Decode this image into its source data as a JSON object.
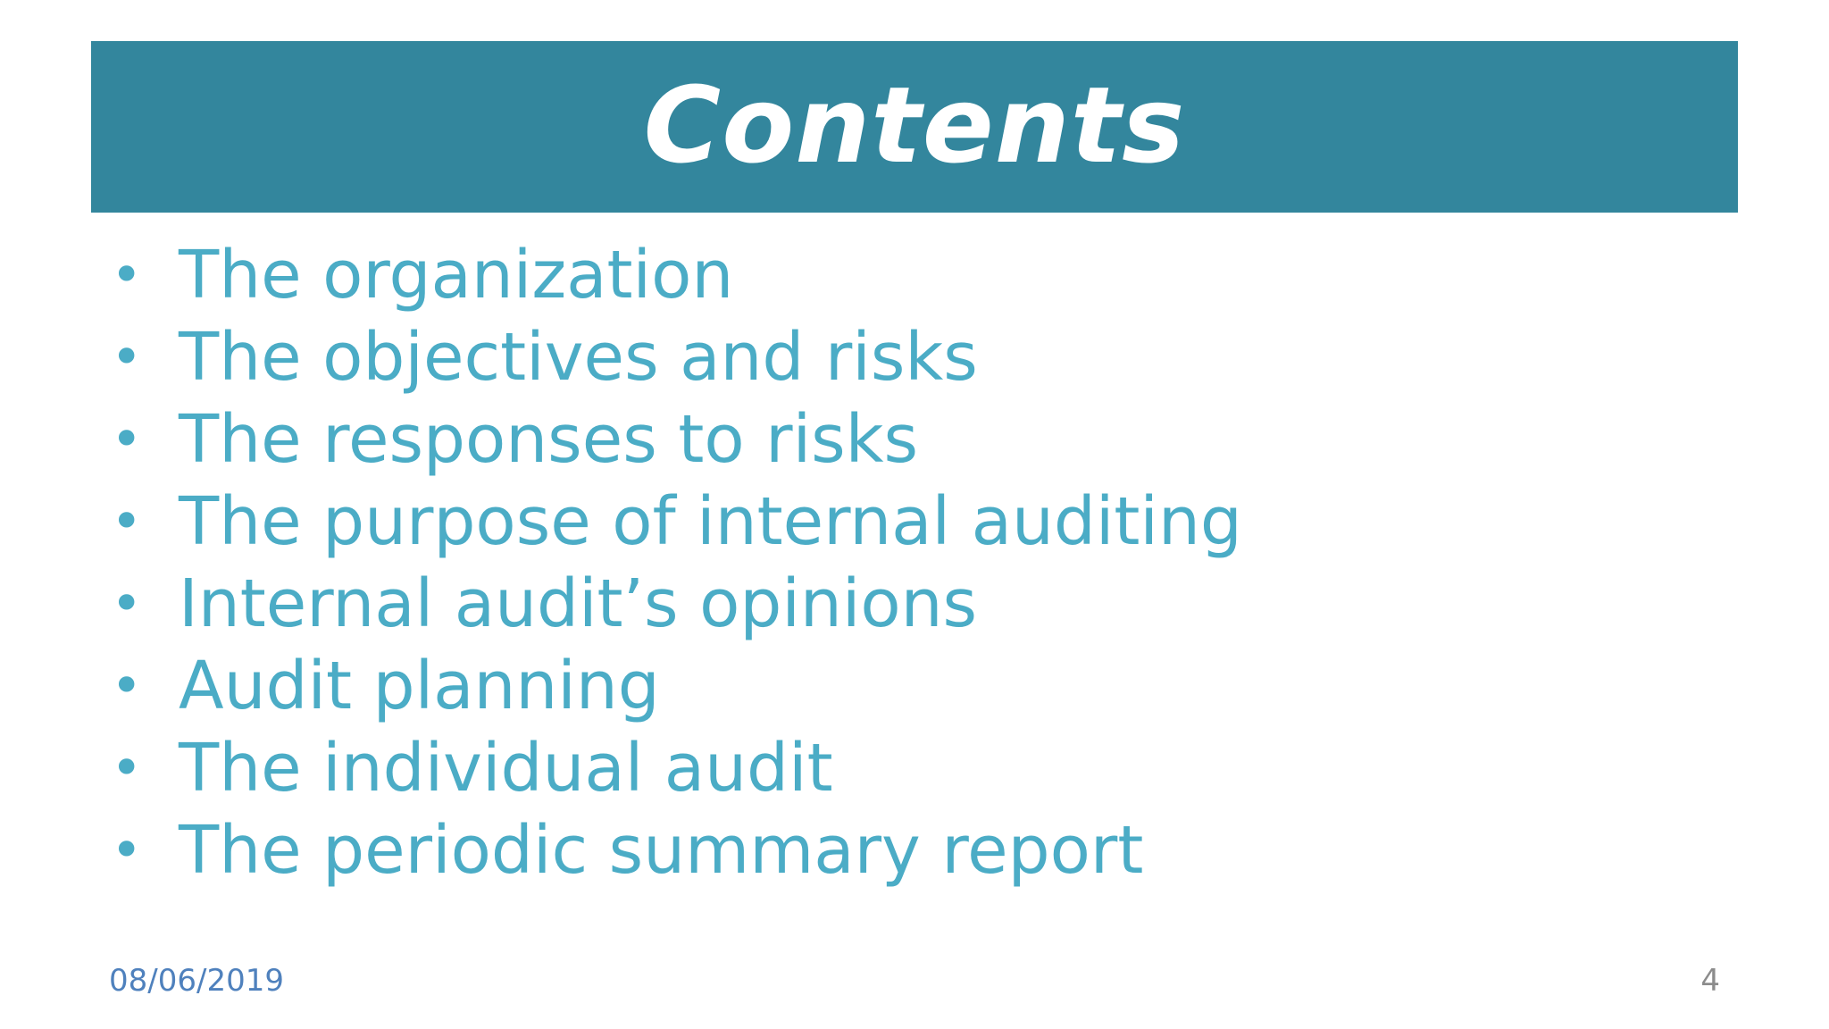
{
  "slide": {
    "title": "Contents",
    "items": [
      "The organization",
      "The objectives and risks",
      "The responses to risks",
      "The purpose of internal auditing",
      "Internal audit’s opinions",
      "Audit planning",
      "The individual audit",
      "The periodic summary report"
    ],
    "bullet": "•",
    "footer": {
      "date": "08/06/2019",
      "page_number": "4"
    }
  },
  "colors": {
    "header_bg": "#33869d",
    "item_text": "#4bacc6",
    "date_text": "#4f81bd",
    "page_text": "#8c8c8c"
  }
}
